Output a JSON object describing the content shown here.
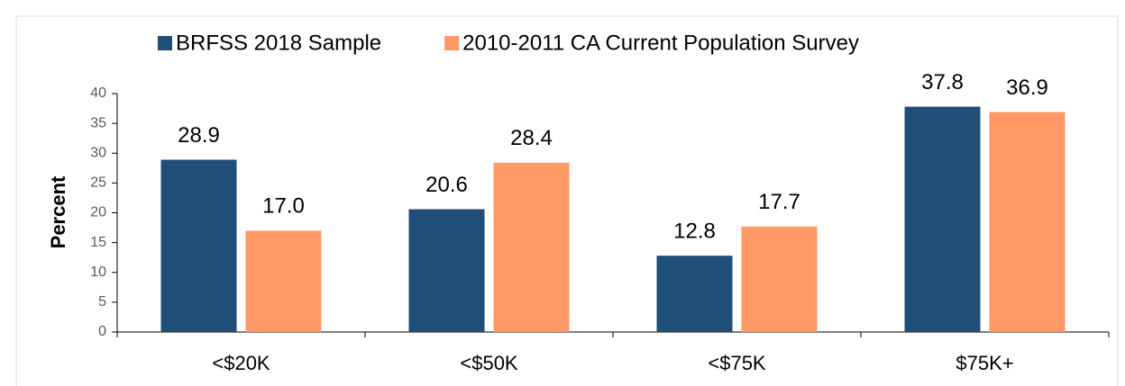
{
  "chart_data": {
    "type": "bar",
    "y_label": "Percent",
    "categories": [
      "<$20K",
      "<$50K",
      "<$75K",
      "$75K+"
    ],
    "series": [
      {
        "name": "BRFSS 2018 Sample",
        "color": "#1f4e79",
        "values": [
          28.9,
          20.6,
          12.8,
          37.8
        ],
        "value_labels": [
          "28.9",
          "20.6",
          "12.8",
          "37.8"
        ]
      },
      {
        "name": "2010-2011 CA Current Population Survey",
        "color": "#ff9966",
        "values": [
          17.0,
          28.4,
          17.7,
          36.9
        ],
        "value_labels": [
          "17.0",
          "28.4",
          "17.7",
          "36.9"
        ]
      }
    ],
    "ylim": [
      0,
      40
    ],
    "yticks": [
      0,
      5,
      10,
      15,
      20,
      25,
      30,
      35,
      40
    ],
    "legend": "top"
  }
}
